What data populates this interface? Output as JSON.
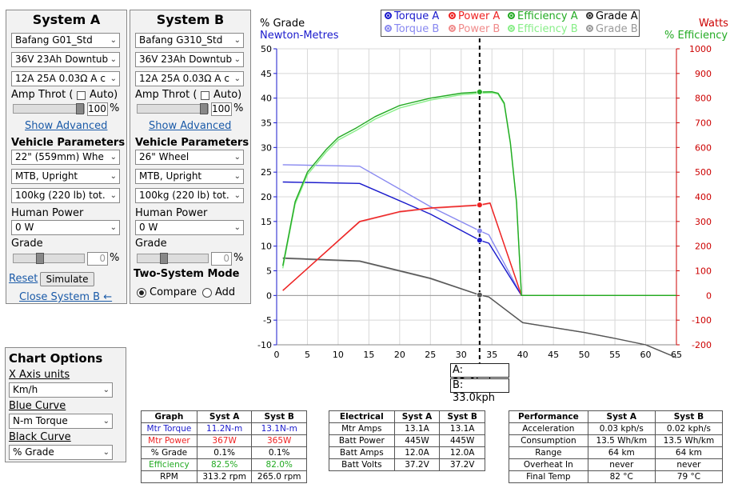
{
  "systemA": {
    "title": "System A",
    "motor": "Bafang G01_Std",
    "battery": "36V 23Ah Downtub",
    "controller": "12A 25A 0.03Ω A c",
    "amp_throt_label": "Amp Throt",
    "auto_label": "Auto)",
    "throttle_value": "100",
    "percent": "%",
    "show_advanced": "Show Advanced",
    "vehicle_params": "Vehicle Parameters",
    "wheel": "22\" (559mm)  Whe",
    "type": "MTB, Upright",
    "mass": "100kg (220 lb) tot.",
    "human_power_label": "Human Power",
    "human_power": "0 W",
    "grade_label": "Grade",
    "grade_value": "0",
    "reset": "Reset",
    "simulate": "Simulate",
    "close_b": "Close System B ←"
  },
  "systemB": {
    "title": "System B",
    "motor": "Bafang G310_Std",
    "battery": "36V 23Ah Downtub",
    "controller": "12A 25A 0.03Ω A c",
    "amp_throt_label": "Amp Throt",
    "auto_label": "Auto)",
    "throttle_value": "100",
    "percent": "%",
    "show_advanced": "Show Advanced",
    "vehicle_params": "Vehicle Parameters",
    "wheel": "26\"  Wheel",
    "type": "MTB, Upright",
    "mass": "100kg (220 lb) tot.",
    "human_power_label": "Human Power",
    "human_power": "0 W",
    "grade_label": "Grade",
    "grade_value": "0",
    "two_system_mode": "Two-System Mode",
    "compare": "Compare",
    "add": "Add"
  },
  "chart_options": {
    "title": "Chart Options",
    "x_axis_label": "X Axis units",
    "x_axis_value": "Km/h",
    "blue_label": "Blue Curve",
    "blue_value": "N-m Torque",
    "black_label": "Black Curve",
    "black_value": "% Grade"
  },
  "legend": {
    "torque_a": "Torque A",
    "power_a": "Power A",
    "eff_a": "Efficiency A",
    "grade_a": "Grade A",
    "torque_b": "Torque B",
    "power_b": "Power B",
    "eff_b": "Efficiency B",
    "grade_b": "Grade B"
  },
  "axis_titles": {
    "left1": "% Grade",
    "left2": "Newton-Metres",
    "right1": "Watts",
    "right2": "% Efficiency"
  },
  "speed_labels": {
    "a": "A: 33.0kph",
    "b": "B: 33.0kph"
  },
  "colors": {
    "torque_a": "#1a1acc",
    "torque_b": "#8888f0",
    "power_a": "#ee2222",
    "power_b": "#f08a8a",
    "eff_a": "#22aa22",
    "eff_b": "#88ee88",
    "grade_a": "#555555",
    "grade_b": "#999999",
    "right_axis": "#cc0000",
    "left_axis": "#1a1acc"
  },
  "chart_data": {
    "type": "line",
    "x_label": "",
    "xlim": [
      0,
      65
    ],
    "x_ticks": [
      0,
      5,
      10,
      15,
      20,
      25,
      30,
      35,
      40,
      45,
      50,
      55,
      60,
      65
    ],
    "y_left_lim": [
      -10,
      50
    ],
    "y_left_ticks": [
      -10,
      -5,
      0,
      5,
      10,
      15,
      20,
      25,
      30,
      35,
      40,
      45,
      50
    ],
    "y_right_lim": [
      -200,
      1000
    ],
    "y_right_ticks": [
      -200,
      -100,
      0,
      100,
      200,
      300,
      400,
      500,
      600,
      700,
      800,
      900,
      1000
    ],
    "cursor_x": 33,
    "series": [
      {
        "name": "Torque A",
        "axis": "left",
        "color_key": "torque_a",
        "points": [
          [
            1,
            23
          ],
          [
            13.5,
            22.7
          ],
          [
            25,
            16.5
          ],
          [
            33,
            11.2
          ],
          [
            34.5,
            10.6
          ],
          [
            39.8,
            0
          ],
          [
            65,
            0
          ]
        ]
      },
      {
        "name": "Torque B",
        "axis": "left",
        "color_key": "torque_b",
        "points": [
          [
            1,
            26.5
          ],
          [
            13.5,
            26.2
          ],
          [
            25,
            18
          ],
          [
            33,
            13.1
          ],
          [
            34.5,
            12.3
          ],
          [
            39.8,
            0
          ],
          [
            65,
            0
          ]
        ]
      },
      {
        "name": "Power A",
        "axis": "right",
        "color_key": "power_a",
        "points": [
          [
            1,
            20
          ],
          [
            13.5,
            300
          ],
          [
            20,
            340
          ],
          [
            25,
            355
          ],
          [
            33,
            367
          ],
          [
            34.7,
            375
          ],
          [
            39.8,
            0
          ],
          [
            65,
            0
          ]
        ]
      },
      {
        "name": "Power B",
        "axis": "right",
        "color_key": "power_b",
        "points": [
          [
            1,
            20
          ],
          [
            13.5,
            298
          ],
          [
            20,
            338
          ],
          [
            25,
            353
          ],
          [
            33,
            365
          ],
          [
            34.7,
            373
          ],
          [
            39.8,
            0
          ],
          [
            65,
            0
          ]
        ]
      },
      {
        "name": "Efficiency A",
        "axis": "right",
        "color_key": "eff_a",
        "points": [
          [
            1,
            120
          ],
          [
            3,
            380
          ],
          [
            5,
            500
          ],
          [
            8,
            590
          ],
          [
            10,
            640
          ],
          [
            13,
            680
          ],
          [
            16,
            725
          ],
          [
            20,
            770
          ],
          [
            25,
            800
          ],
          [
            30,
            820
          ],
          [
            33,
            825
          ],
          [
            35,
            826
          ],
          [
            36,
            820
          ],
          [
            37,
            780
          ],
          [
            38,
            620
          ],
          [
            39,
            380
          ],
          [
            39.8,
            0
          ],
          [
            65,
            0
          ]
        ]
      },
      {
        "name": "Efficiency B",
        "axis": "right",
        "color_key": "eff_b",
        "points": [
          [
            1,
            110
          ],
          [
            3,
            370
          ],
          [
            5,
            490
          ],
          [
            8,
            580
          ],
          [
            10,
            630
          ],
          [
            13,
            670
          ],
          [
            16,
            715
          ],
          [
            20,
            760
          ],
          [
            25,
            792
          ],
          [
            30,
            814
          ],
          [
            33,
            820
          ],
          [
            35,
            822
          ],
          [
            36,
            816
          ],
          [
            37,
            775
          ],
          [
            38,
            615
          ],
          [
            39,
            375
          ],
          [
            39.8,
            0
          ],
          [
            65,
            0
          ]
        ]
      },
      {
        "name": "Grade A",
        "axis": "left",
        "color_key": "grade_a",
        "points": [
          [
            1,
            7.6
          ],
          [
            13.5,
            7
          ],
          [
            25,
            3.5
          ],
          [
            33,
            0.1
          ],
          [
            34.5,
            -0.3
          ],
          [
            40,
            -5.5
          ],
          [
            50,
            -7.5
          ],
          [
            55,
            -8.7
          ],
          [
            60,
            -10
          ],
          [
            65,
            -12.6
          ]
        ]
      },
      {
        "name": "Grade B",
        "axis": "left",
        "color_key": "grade_b",
        "points": [
          [
            1,
            7.5
          ],
          [
            13.5,
            6.9
          ],
          [
            25,
            3.4
          ],
          [
            33,
            0.1
          ],
          [
            34.5,
            -0.3
          ],
          [
            40,
            -5.5
          ],
          [
            50,
            -7.5
          ],
          [
            55,
            -8.7
          ],
          [
            60,
            -10
          ],
          [
            65,
            -12.6
          ]
        ]
      }
    ],
    "markers": [
      {
        "x": 33,
        "y": 11.2,
        "axis": "left",
        "color_key": "torque_a"
      },
      {
        "x": 33,
        "y": 13.1,
        "axis": "left",
        "color_key": "torque_b"
      },
      {
        "x": 33,
        "y": 367,
        "axis": "right",
        "color_key": "power_a"
      },
      {
        "x": 33,
        "y": 825,
        "axis": "right",
        "color_key": "eff_a"
      },
      {
        "x": 33,
        "y": 0.1,
        "axis": "left",
        "color_key": "grade_a"
      }
    ]
  },
  "tables": {
    "graph": {
      "headers": [
        "Graph",
        "Syst A",
        "Syst B"
      ],
      "rows": [
        {
          "label": "Mtr Torque",
          "a": "11.2N-m",
          "b": "13.1N-m",
          "color": "#1a1acc"
        },
        {
          "label": "Mtr Power",
          "a": "367W",
          "b": "365W",
          "color": "#ee2222"
        },
        {
          "label": "% Grade",
          "a": "0.1%",
          "b": "0.1%",
          "color": "#000000"
        },
        {
          "label": "Efficiency",
          "a": "82.5%",
          "b": "82.0%",
          "color": "#22aa22"
        },
        {
          "label": "RPM",
          "a": "313.2 rpm",
          "b": "265.0 rpm",
          "color": "#000000"
        }
      ]
    },
    "electrical": {
      "headers": [
        "Electrical",
        "Syst A",
        "Syst B"
      ],
      "rows": [
        {
          "label": "Mtr Amps",
          "a": "13.1A",
          "b": "13.1A"
        },
        {
          "label": "Batt Power",
          "a": "445W",
          "b": "445W"
        },
        {
          "label": "Batt Amps",
          "a": "12.0A",
          "b": "12.0A"
        },
        {
          "label": "Batt Volts",
          "a": "37.2V",
          "b": "37.2V"
        }
      ]
    },
    "performance": {
      "headers": [
        "Performance",
        "Syst A",
        "Syst B"
      ],
      "rows": [
        {
          "label": "Acceleration",
          "a": "0.03 kph/s",
          "b": "0.02 kph/s"
        },
        {
          "label": "Consumption",
          "a": "13.5 Wh/km",
          "b": "13.5 Wh/km"
        },
        {
          "label": "Range",
          "a": "64 km",
          "b": "64 km"
        },
        {
          "label": "Overheat In",
          "a": "never",
          "b": "never"
        },
        {
          "label": "Final Temp",
          "a": "82 °C",
          "b": "79 °C"
        }
      ]
    }
  }
}
